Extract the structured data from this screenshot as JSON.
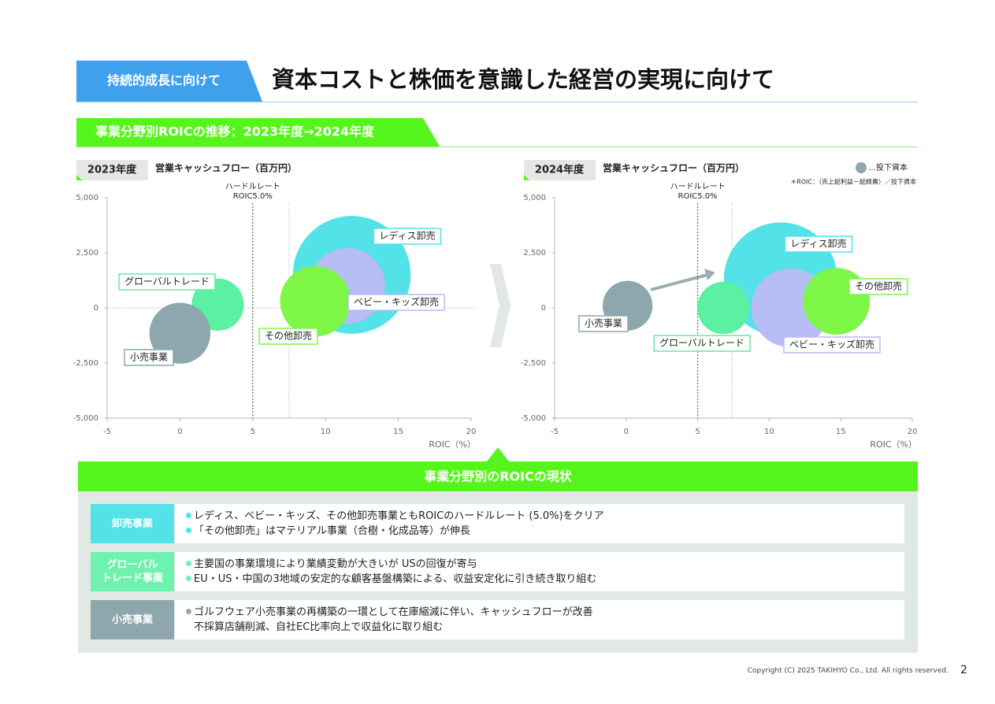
{
  "header": {
    "tag": "持続的成長に向けて",
    "title": "資本コストと株価を意識した経営の実現に向けて"
  },
  "section": {
    "title": "事業分野別ROICの推移：2023年度→2024年度"
  },
  "chart_data": [
    {
      "type": "bubble",
      "tag": "2023年度",
      "title": "営業キャッシュフロー（百万円）",
      "x_label": "ROIC（%）",
      "xlim": [
        -5,
        20
      ],
      "xticks": [
        -5,
        0,
        5,
        10,
        15,
        20
      ],
      "ylim": [
        -5000,
        5000
      ],
      "yticks": [
        {
          "value": -5000,
          "label": "-5,000"
        },
        {
          "value": -2500,
          "label": "-2,500"
        },
        0,
        {
          "value": 2500,
          "label": "2,500"
        },
        {
          "value": 5000,
          "label": "5,000"
        }
      ],
      "zero_line": true,
      "vlines": [
        {
          "value": 5,
          "label_lines": [
            "ハードルレート",
            "ROIC5.0%"
          ],
          "color": "#3d8a55"
        },
        {
          "value": 7.5,
          "color": "#9aa5a0"
        }
      ],
      "series": [
        {
          "name": "レディス卸売",
          "color": "#52e2e8",
          "x": 11.8,
          "y": 1500,
          "size": 56
        },
        {
          "name": "ベビー・キッズ卸売",
          "color": "#b6bcf6",
          "x": 11.5,
          "y": 1000,
          "size": 23
        },
        {
          "name": "その他卸売",
          "color": "#7ef646",
          "x": 9.3,
          "y": 300,
          "size": 20
        },
        {
          "name": "グローバルトレード",
          "color": "#5bf0a2",
          "x": 2.6,
          "y": 150,
          "size": 11
        },
        {
          "name": "小売事業",
          "color": "#8ea6ae",
          "x": 0,
          "y": -1150,
          "size": 15
        }
      ]
    },
    {
      "type": "bubble",
      "tag": "2024年度",
      "title": "営業キャッシュフロー（百万円）",
      "x_label": "ROIC（%）",
      "size_legend": "…投下資本",
      "note": "＊ROIC：（売上総利益－総経費）／投下資本",
      "xlim": [
        -5,
        20
      ],
      "xticks": [
        -5,
        0,
        5,
        10,
        15,
        20
      ],
      "ylim": [
        -5000,
        5000
      ],
      "yticks": [
        {
          "value": -5000,
          "label": "-5,000"
        },
        {
          "value": -2500,
          "label": "-2,500"
        },
        0,
        {
          "value": 2500,
          "label": "2,500"
        },
        {
          "value": 5000,
          "label": "5,000"
        }
      ],
      "zero_line": false,
      "vlines": [
        {
          "value": 5,
          "label_lines": [
            "ハードルレート",
            "ROIC5.0%"
          ],
          "color": "#3d8a55"
        },
        {
          "value": 7.4,
          "color": "#9aa5a0"
        }
      ],
      "series": [
        {
          "name": "レディス卸売",
          "color": "#52e2e8",
          "x": 10.8,
          "y": 1300,
          "size": 52
        },
        {
          "name": "ベビー・キッズ卸売",
          "color": "#b6bcf6",
          "x": 11.5,
          "y": 0,
          "size": 25
        },
        {
          "name": "その他卸売",
          "color": "#7ef646",
          "x": 14.7,
          "y": 300,
          "size": 18
        },
        {
          "name": "グローバルトレード",
          "color": "#5bf0a2",
          "x": 6.8,
          "y": 0,
          "size": 11
        },
        {
          "name": "小売事業",
          "color": "#8ea6ae",
          "x": 0.1,
          "y": 100,
          "size": 10
        }
      ]
    }
  ],
  "summary": {
    "title": "事業分野別のROICの現状",
    "rows": [
      {
        "label": "卸売事業",
        "color": "#52e2e8",
        "items": [
          {
            "text": "レディス、ベビー・キッズ、その他卸売事業ともROICのハードルレート (5.0%)をクリア",
            "bullet": true
          },
          {
            "text": "「その他卸売」はマテリアル事業（合樹・化成品等）が伸長",
            "bullet": true
          }
        ]
      },
      {
        "label": "グローバル\nトレード事業",
        "color": "#6ff2ad",
        "items": [
          {
            "text": "主要国の事業環境により業績変動が大きいが USの回復が寄与",
            "bullet": true
          },
          {
            "text": "EU・US・中国の3地域の安定的な顧客基盤構築による、収益安定化に引き続き取り組む",
            "bullet": true
          }
        ]
      },
      {
        "label": "小売事業",
        "color": "#8ea6ae",
        "items": [
          {
            "text": "ゴルフウェア小売事業の再構築の一環として在庫縮減に伴い、キャッシュフローが改善",
            "bullet": true
          },
          {
            "text": "不採算店舗削減、自社EC比率向上で収益化に取り組む",
            "bullet": false
          }
        ]
      }
    ]
  },
  "footer": {
    "copyright": "Copyright (C) 2025 TAKIHYO Co., Ltd. All rights reserved.",
    "page": "2"
  }
}
